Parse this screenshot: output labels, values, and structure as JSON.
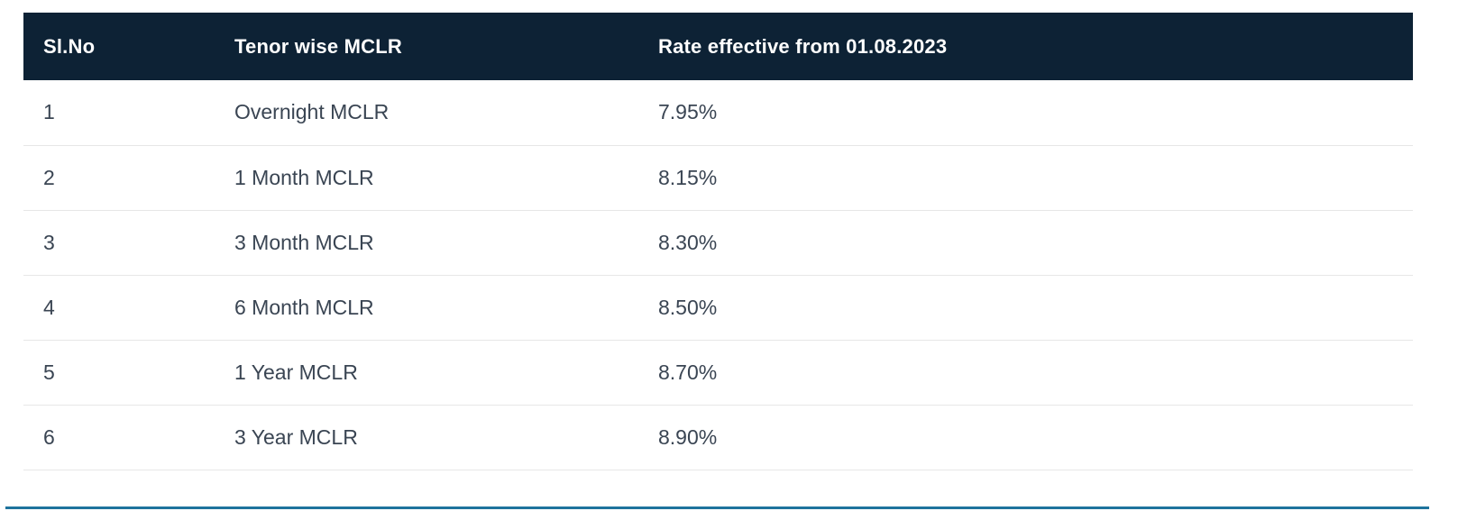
{
  "table": {
    "columns": [
      {
        "label": "Sl.No"
      },
      {
        "label": "Tenor wise MCLR"
      },
      {
        "label": "Rate effective from 01.08.2023"
      }
    ],
    "rows": [
      {
        "sl_no": "1",
        "tenor": "Overnight MCLR",
        "rate": "7.95%"
      },
      {
        "sl_no": "2",
        "tenor": "1 Month MCLR",
        "rate": "8.15%"
      },
      {
        "sl_no": "3",
        "tenor": "3 Month MCLR",
        "rate": "8.30%"
      },
      {
        "sl_no": "4",
        "tenor": "6 Month MCLR",
        "rate": "8.50%"
      },
      {
        "sl_no": "5",
        "tenor": "1 Year MCLR",
        "rate": "8.70%"
      },
      {
        "sl_no": "6",
        "tenor": "3 Year MCLR",
        "rate": "8.90%"
      }
    ]
  },
  "colors": {
    "header_bg": "#0d2235",
    "header_text": "#ffffff",
    "body_text": "#3a4553",
    "divider": "#e7e7e7",
    "accent_line": "#1f739d",
    "page_bg": "#ffffff"
  }
}
